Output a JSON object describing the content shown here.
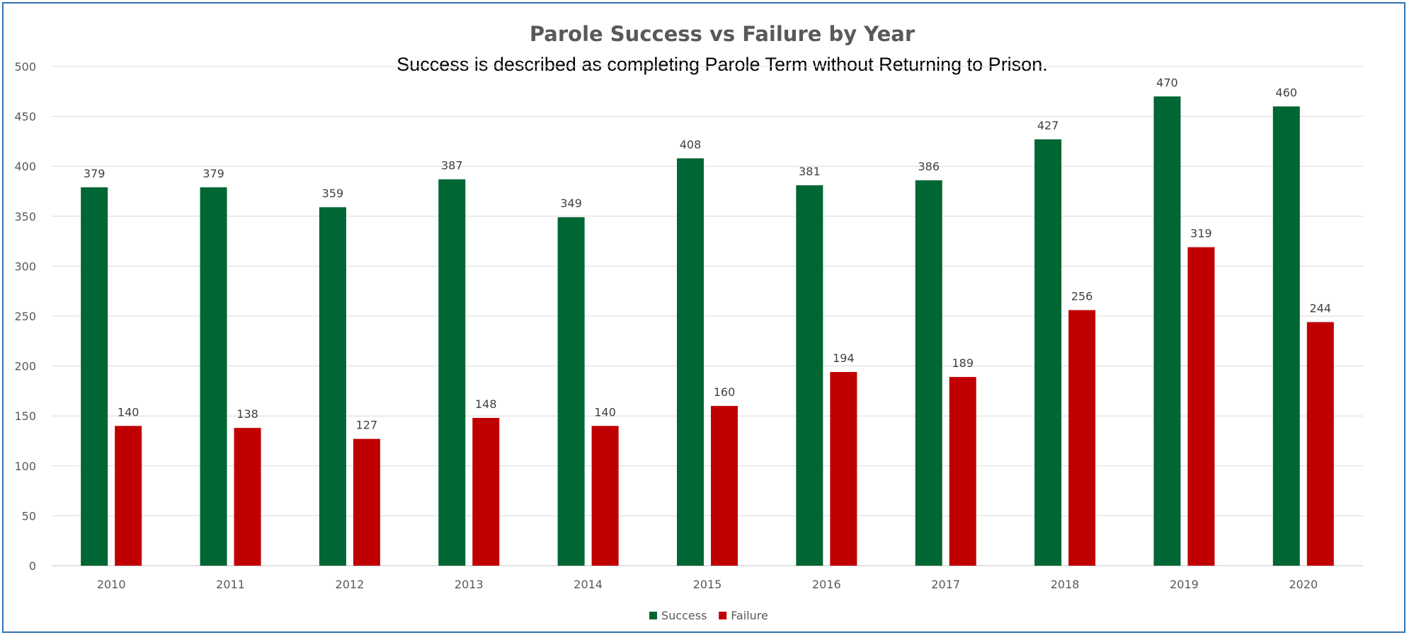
{
  "chart_data": {
    "type": "bar",
    "title": "Parole Success vs Failure by Year",
    "subtitle": "Success is described as completing Parole Term without Returning to Prison.",
    "categories": [
      "2010",
      "2011",
      "2012",
      "2013",
      "2014",
      "2015",
      "2016",
      "2017",
      "2018",
      "2019",
      "2020"
    ],
    "series": [
      {
        "name": "Success",
        "color": "#006633",
        "values": [
          379,
          379,
          359,
          387,
          349,
          408,
          381,
          386,
          427,
          470,
          460
        ]
      },
      {
        "name": "Failure",
        "color": "#c00000",
        "values": [
          140,
          138,
          127,
          148,
          140,
          160,
          194,
          189,
          256,
          319,
          244
        ]
      }
    ],
    "ylim": [
      0,
      500
    ],
    "yticks": [
      0,
      50,
      100,
      150,
      200,
      250,
      300,
      350,
      400,
      450,
      500
    ],
    "grid": true,
    "legend_position": "bottom-center",
    "data_labels": true
  }
}
